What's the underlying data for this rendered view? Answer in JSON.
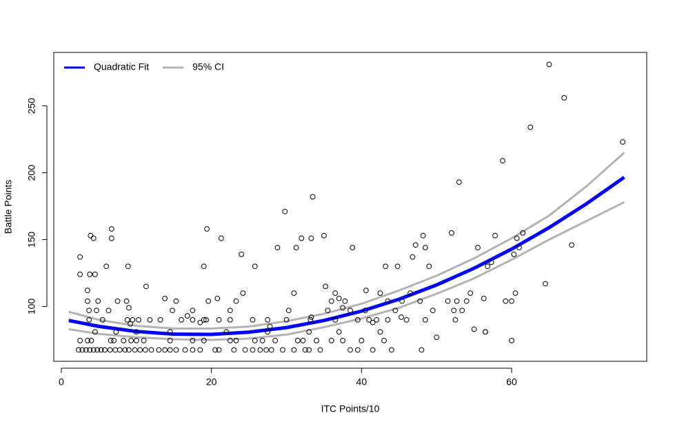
{
  "chart_data": {
    "type": "scatter",
    "xlabel": "ITC Points/10",
    "ylabel": "Battle Points",
    "xlim": [
      -1,
      78
    ],
    "ylim": [
      59,
      290
    ],
    "xticks": [
      0,
      20,
      40,
      60
    ],
    "yticks": [
      100,
      150,
      200,
      250
    ],
    "legend": "top-left",
    "points": {
      "color": "#000000",
      "x": [
        2.3,
        2.8,
        3.3,
        3.8,
        4.3,
        4.8,
        5.3,
        5.8,
        6.5,
        7.2,
        7.8,
        8.5,
        9.0,
        9.8,
        10.5,
        11.2,
        12.0,
        13.0,
        13.8,
        14.5,
        15.3,
        16.5,
        17.5,
        18.5,
        20.5,
        21.0,
        23.0,
        24.5,
        25.5,
        26.5,
        27.3,
        28.0,
        29.5,
        31.0,
        32.5,
        33.0,
        34.5,
        38.5,
        39.5,
        41.5,
        44.0,
        48.0,
        2.5,
        3.5,
        4.0,
        6.6,
        7.0,
        8.3,
        9.3,
        10.0,
        11.0,
        14.5,
        17.5,
        19.0,
        22.5,
        23.3,
        25.8,
        26.8,
        28.5,
        31.5,
        32.2,
        34.0,
        36.0,
        37.5,
        40.0,
        43.0,
        60.0,
        3.7,
        5.5,
        8.8,
        9.5,
        10.3,
        11.8,
        13.2,
        16.0,
        17.5,
        19.0,
        19.3,
        21.0,
        22.5,
        25.5,
        27.5,
        30.0,
        33.2,
        36.5,
        39.5,
        41.0,
        42.0,
        43.5,
        46.0,
        48.5,
        52.5,
        4.5,
        7.3,
        10.0,
        14.5,
        22.0,
        27.5,
        33.0,
        37.0,
        42.5,
        56.5,
        2.5,
        2.5,
        3.5,
        3.5,
        3.7,
        3.8,
        3.9,
        4.3,
        4.5,
        4.7,
        4.9,
        6.0,
        6.3,
        6.7,
        6.7,
        7.5,
        8.7,
        8.9,
        9.0,
        9.2,
        11.3,
        13.8,
        14.8,
        15.3,
        16.8,
        17.5,
        18.5,
        19.0,
        19.4,
        19.6,
        20.8,
        21.3,
        22.5,
        23.3,
        24.0,
        24.2,
        25.8,
        27.8,
        28.8,
        29.8,
        30.3,
        31.0,
        31.3,
        32.0,
        33.3,
        33.5,
        33.3,
        35.0,
        35.2,
        35.5,
        36.0,
        36.5,
        37.0,
        37.5,
        37.8,
        38.5,
        38.8,
        40.5,
        40.6,
        41.5,
        42.5,
        43.2,
        43.5,
        44.5,
        44.8,
        45.3,
        45.4,
        46.5,
        46.8,
        47.2,
        47.8,
        48.2,
        48.5,
        49.0,
        49.5,
        50.0,
        51.5,
        52.0,
        52.3,
        52.7,
        53.0,
        53.4,
        54.0,
        54.5,
        55.0,
        55.5,
        56.3,
        56.5,
        56.8,
        57.3,
        57.8,
        58.8,
        59.2,
        60.0,
        60.3,
        60.5,
        60.7,
        61.0,
        61.5,
        62.5,
        64.5,
        65.0,
        67.0,
        68.0,
        74.8
      ],
      "y": [
        67.5,
        67.5,
        67.5,
        67.5,
        67.5,
        67.5,
        67.5,
        67.5,
        67.5,
        67.5,
        67.5,
        67.5,
        67.5,
        67.5,
        67.5,
        67.5,
        67.5,
        67.5,
        67.5,
        67.5,
        67.5,
        67.5,
        67.5,
        67.5,
        67.5,
        67.5,
        67.5,
        67.5,
        67.5,
        67.5,
        67.5,
        67.5,
        67.5,
        67.5,
        67.5,
        67.5,
        67.5,
        67.5,
        67.5,
        67.5,
        67.5,
        67.5,
        74.5,
        74.5,
        74.5,
        74.5,
        74.5,
        74.5,
        74.5,
        74.5,
        74.5,
        74.5,
        74.5,
        74.5,
        74.5,
        74.5,
        74.5,
        74.5,
        74.5,
        74.5,
        74.5,
        74.5,
        74.5,
        74.5,
        74.5,
        74.5,
        74.5,
        90,
        90,
        90,
        90,
        90,
        90,
        90,
        90,
        90,
        90,
        90,
        90,
        90,
        90,
        90,
        90,
        90,
        90,
        90,
        90,
        90,
        90,
        90,
        90,
        90,
        81,
        81,
        81,
        81,
        81,
        81,
        81,
        81,
        81,
        81,
        124,
        137,
        104,
        112,
        97,
        124,
        153,
        151,
        124,
        97,
        104,
        130,
        97,
        151,
        158,
        104,
        104,
        130,
        99,
        87,
        115,
        106,
        97,
        104,
        93,
        97,
        88,
        130,
        158,
        104,
        106,
        151,
        97,
        104,
        139,
        110,
        130,
        85,
        144,
        171,
        97,
        110,
        144,
        151,
        151,
        182,
        92,
        153,
        115,
        97,
        104,
        110,
        106,
        99,
        104,
        97,
        144,
        97,
        112,
        88,
        110,
        130,
        104,
        97,
        130,
        92,
        104,
        110,
        137,
        146,
        104,
        153,
        144,
        130,
        97,
        77,
        104,
        155,
        97,
        104,
        193,
        97,
        104,
        110,
        83,
        144,
        106,
        81,
        130,
        133,
        153,
        209,
        104,
        104,
        139,
        110,
        151,
        144,
        155,
        234,
        117,
        281,
        256,
        146,
        223
      ]
    },
    "series": [
      {
        "name": "Quadratic Fit",
        "color": "#0000ff",
        "x": [
          1,
          5,
          10,
          15,
          20,
          25,
          30,
          35,
          40,
          45,
          50,
          55,
          60,
          65,
          70,
          75
        ],
        "values": [
          89.5,
          85.1,
          81.3,
          79.3,
          79.1,
          80.8,
          84.2,
          89.5,
          96.5,
          105.4,
          116.1,
          128.6,
          142.9,
          159.0,
          176.9,
          196.6
        ]
      },
      {
        "name": "95% CI",
        "color": "#b3b3b3",
        "x": [
          1,
          5,
          10,
          15,
          20,
          25,
          30,
          35,
          40,
          45,
          50,
          55,
          60,
          65,
          70,
          75
        ],
        "upper": [
          96,
          90,
          85.5,
          83.5,
          83.5,
          85,
          89,
          94.5,
          102,
          112,
          123,
          136,
          151,
          168,
          190,
          215
        ],
        "lower": [
          83,
          79.5,
          77,
          75.5,
          75,
          76,
          79,
          84.5,
          91,
          99,
          109.5,
          121,
          135,
          150,
          164,
          178
        ]
      }
    ]
  }
}
